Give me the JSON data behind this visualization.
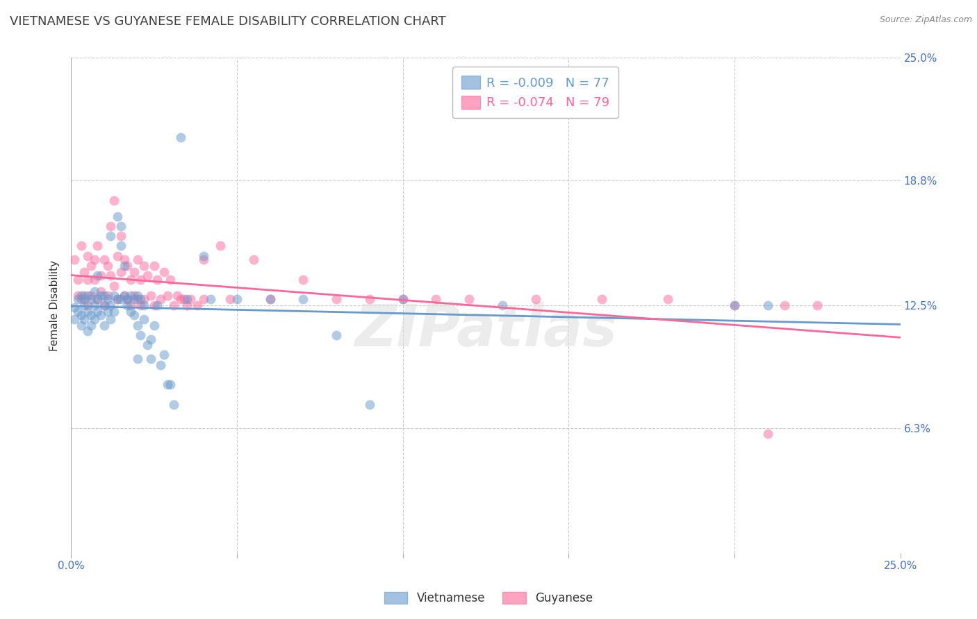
{
  "title": "VIETNAMESE VS GUYANESE FEMALE DISABILITY CORRELATION CHART",
  "source": "Source: ZipAtlas.com",
  "ylabel": "Female Disability",
  "ytick_labels": [
    "6.3%",
    "12.5%",
    "18.8%",
    "25.0%"
  ],
  "ytick_values": [
    0.063,
    0.125,
    0.188,
    0.25
  ],
  "xmin": 0.0,
  "xmax": 0.25,
  "ymin": 0.0,
  "ymax": 0.25,
  "legend_viet_R": "-0.009",
  "legend_viet_N": "77",
  "legend_guyan_R": "-0.074",
  "legend_guyan_N": "79",
  "watermark": "ZIPatlas",
  "vietnamese_color": "#6699CC",
  "guyanese_color": "#FF6699",
  "vietnamese_scatter": [
    [
      0.001,
      0.124
    ],
    [
      0.001,
      0.118
    ],
    [
      0.002,
      0.122
    ],
    [
      0.002,
      0.128
    ],
    [
      0.003,
      0.12
    ],
    [
      0.003,
      0.115
    ],
    [
      0.003,
      0.13
    ],
    [
      0.004,
      0.125
    ],
    [
      0.004,
      0.118
    ],
    [
      0.004,
      0.128
    ],
    [
      0.005,
      0.122
    ],
    [
      0.005,
      0.13
    ],
    [
      0.005,
      0.112
    ],
    [
      0.006,
      0.128
    ],
    [
      0.006,
      0.12
    ],
    [
      0.006,
      0.115
    ],
    [
      0.007,
      0.125
    ],
    [
      0.007,
      0.118
    ],
    [
      0.007,
      0.132
    ],
    [
      0.008,
      0.128
    ],
    [
      0.008,
      0.122
    ],
    [
      0.008,
      0.14
    ],
    [
      0.009,
      0.13
    ],
    [
      0.009,
      0.12
    ],
    [
      0.01,
      0.125
    ],
    [
      0.01,
      0.13
    ],
    [
      0.01,
      0.115
    ],
    [
      0.011,
      0.128
    ],
    [
      0.011,
      0.122
    ],
    [
      0.012,
      0.125
    ],
    [
      0.012,
      0.16
    ],
    [
      0.012,
      0.118
    ],
    [
      0.013,
      0.13
    ],
    [
      0.013,
      0.122
    ],
    [
      0.014,
      0.128
    ],
    [
      0.014,
      0.17
    ],
    [
      0.015,
      0.165
    ],
    [
      0.015,
      0.155
    ],
    [
      0.015,
      0.128
    ],
    [
      0.016,
      0.145
    ],
    [
      0.016,
      0.13
    ],
    [
      0.017,
      0.125
    ],
    [
      0.017,
      0.128
    ],
    [
      0.018,
      0.122
    ],
    [
      0.018,
      0.13
    ],
    [
      0.019,
      0.128
    ],
    [
      0.019,
      0.12
    ],
    [
      0.02,
      0.13
    ],
    [
      0.02,
      0.115
    ],
    [
      0.02,
      0.098
    ],
    [
      0.021,
      0.128
    ],
    [
      0.021,
      0.11
    ],
    [
      0.022,
      0.125
    ],
    [
      0.022,
      0.118
    ],
    [
      0.023,
      0.105
    ],
    [
      0.024,
      0.098
    ],
    [
      0.024,
      0.108
    ],
    [
      0.025,
      0.115
    ],
    [
      0.026,
      0.125
    ],
    [
      0.027,
      0.095
    ],
    [
      0.028,
      0.1
    ],
    [
      0.029,
      0.085
    ],
    [
      0.03,
      0.085
    ],
    [
      0.031,
      0.075
    ],
    [
      0.033,
      0.21
    ],
    [
      0.035,
      0.128
    ],
    [
      0.04,
      0.15
    ],
    [
      0.042,
      0.128
    ],
    [
      0.05,
      0.128
    ],
    [
      0.06,
      0.128
    ],
    [
      0.07,
      0.128
    ],
    [
      0.08,
      0.11
    ],
    [
      0.09,
      0.075
    ],
    [
      0.1,
      0.128
    ],
    [
      0.13,
      0.125
    ],
    [
      0.2,
      0.125
    ],
    [
      0.21,
      0.125
    ]
  ],
  "guyanese_scatter": [
    [
      0.001,
      0.148
    ],
    [
      0.002,
      0.138
    ],
    [
      0.002,
      0.13
    ],
    [
      0.003,
      0.155
    ],
    [
      0.003,
      0.128
    ],
    [
      0.004,
      0.142
    ],
    [
      0.004,
      0.13
    ],
    [
      0.005,
      0.15
    ],
    [
      0.005,
      0.138
    ],
    [
      0.005,
      0.125
    ],
    [
      0.006,
      0.145
    ],
    [
      0.006,
      0.13
    ],
    [
      0.007,
      0.148
    ],
    [
      0.007,
      0.138
    ],
    [
      0.008,
      0.155
    ],
    [
      0.008,
      0.128
    ],
    [
      0.009,
      0.14
    ],
    [
      0.009,
      0.132
    ],
    [
      0.01,
      0.148
    ],
    [
      0.01,
      0.125
    ],
    [
      0.011,
      0.145
    ],
    [
      0.011,
      0.13
    ],
    [
      0.012,
      0.165
    ],
    [
      0.012,
      0.14
    ],
    [
      0.013,
      0.178
    ],
    [
      0.013,
      0.135
    ],
    [
      0.014,
      0.15
    ],
    [
      0.014,
      0.128
    ],
    [
      0.015,
      0.16
    ],
    [
      0.015,
      0.142
    ],
    [
      0.016,
      0.148
    ],
    [
      0.016,
      0.13
    ],
    [
      0.017,
      0.145
    ],
    [
      0.017,
      0.128
    ],
    [
      0.018,
      0.138
    ],
    [
      0.018,
      0.125
    ],
    [
      0.019,
      0.142
    ],
    [
      0.019,
      0.13
    ],
    [
      0.02,
      0.148
    ],
    [
      0.02,
      0.128
    ],
    [
      0.021,
      0.138
    ],
    [
      0.021,
      0.125
    ],
    [
      0.022,
      0.145
    ],
    [
      0.022,
      0.128
    ],
    [
      0.023,
      0.14
    ],
    [
      0.024,
      0.13
    ],
    [
      0.025,
      0.145
    ],
    [
      0.025,
      0.125
    ],
    [
      0.026,
      0.138
    ],
    [
      0.027,
      0.128
    ],
    [
      0.028,
      0.142
    ],
    [
      0.029,
      0.13
    ],
    [
      0.03,
      0.138
    ],
    [
      0.031,
      0.125
    ],
    [
      0.032,
      0.13
    ],
    [
      0.033,
      0.128
    ],
    [
      0.034,
      0.128
    ],
    [
      0.035,
      0.125
    ],
    [
      0.036,
      0.128
    ],
    [
      0.038,
      0.125
    ],
    [
      0.04,
      0.148
    ],
    [
      0.04,
      0.128
    ],
    [
      0.045,
      0.155
    ],
    [
      0.048,
      0.128
    ],
    [
      0.055,
      0.148
    ],
    [
      0.06,
      0.128
    ],
    [
      0.07,
      0.138
    ],
    [
      0.08,
      0.128
    ],
    [
      0.09,
      0.128
    ],
    [
      0.1,
      0.128
    ],
    [
      0.11,
      0.128
    ],
    [
      0.12,
      0.128
    ],
    [
      0.14,
      0.128
    ],
    [
      0.16,
      0.128
    ],
    [
      0.18,
      0.128
    ],
    [
      0.2,
      0.125
    ],
    [
      0.21,
      0.06
    ],
    [
      0.215,
      0.125
    ],
    [
      0.225,
      0.125
    ]
  ],
  "background_color": "#FFFFFF",
  "grid_color": "#CCCCCC",
  "tick_label_color": "#4472C4",
  "title_color": "#404040",
  "watermark_color": "#E0E0E0",
  "title_fontsize": 13,
  "axis_label_fontsize": 11,
  "tick_fontsize": 11,
  "dot_size": 100,
  "dot_alpha": 0.5,
  "line_width": 2.0
}
